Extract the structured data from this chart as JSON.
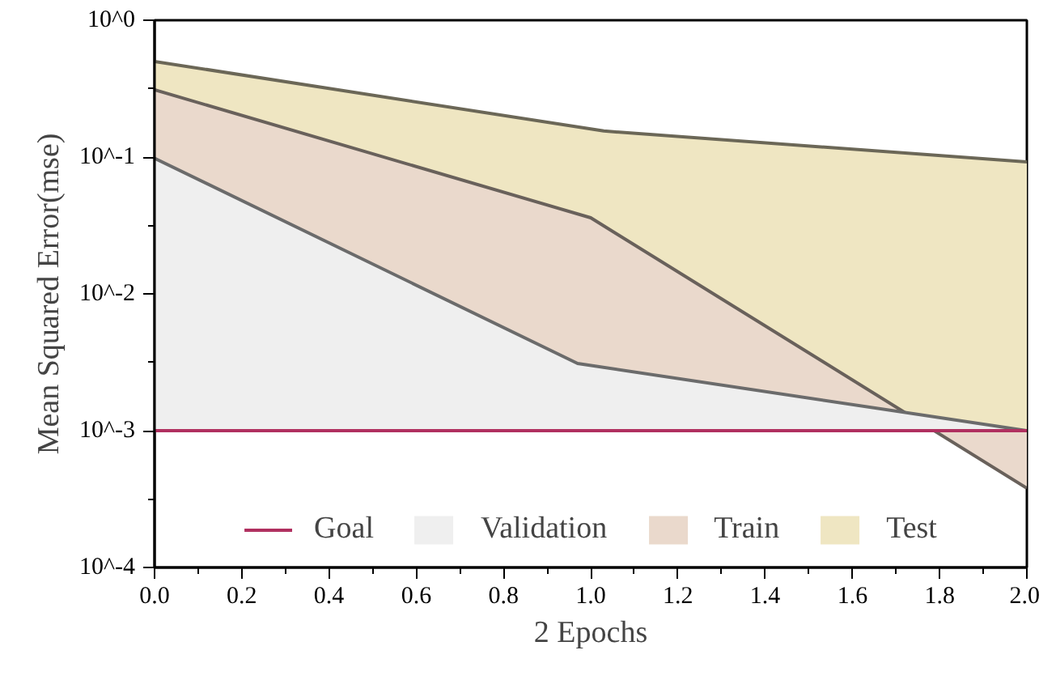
{
  "chart_data": {
    "type": "area",
    "xlabel": "2 Epochs",
    "ylabel": "Mean Squared Error(mse)",
    "log": "y",
    "xlim": [
      0,
      2
    ],
    "ylim": [
      0.0001,
      1
    ],
    "xticks": [
      {
        "value": 0,
        "label": "0.0"
      },
      {
        "value": 0.1,
        "label": null
      },
      {
        "value": 0.2,
        "label": "0.2"
      },
      {
        "value": 0.3,
        "label": null
      },
      {
        "value": 0.4,
        "label": "0.4"
      },
      {
        "value": 0.5,
        "label": null
      },
      {
        "value": 0.6,
        "label": "0.6"
      },
      {
        "value": 0.7,
        "label": null
      },
      {
        "value": 0.8,
        "label": "0.8"
      },
      {
        "value": 0.9,
        "label": null
      },
      {
        "value": 1.0,
        "label": "1.0"
      },
      {
        "value": 1.1,
        "label": null
      },
      {
        "value": 1.2,
        "label": "1.2"
      },
      {
        "value": 1.3,
        "label": null
      },
      {
        "value": 1.4,
        "label": "1.4"
      },
      {
        "value": 1.5,
        "label": null
      },
      {
        "value": 1.6,
        "label": "1.6"
      },
      {
        "value": 1.7,
        "label": null
      },
      {
        "value": 1.8,
        "label": "1.8"
      },
      {
        "value": 1.9,
        "label": null
      },
      {
        "value": 2.0,
        "label": "2.0"
      }
    ],
    "yticks": [
      {
        "value": 0.0001,
        "label": "10^-4"
      },
      {
        "value": 0.000316,
        "label": null
      },
      {
        "value": 0.001,
        "label": "10^-3"
      },
      {
        "value": 0.00316,
        "label": null
      },
      {
        "value": 0.01,
        "label": "10^-2"
      },
      {
        "value": 0.0316,
        "label": null
      },
      {
        "value": 0.1,
        "label": "10^-1"
      },
      {
        "value": 0.316,
        "label": null
      },
      {
        "value": 1,
        "label": "10^0"
      }
    ],
    "ref_lines": [
      {
        "axis": "y",
        "value": 0.001,
        "label": "Goal",
        "color": "#b03060"
      }
    ],
    "series": [
      {
        "name": "Validation",
        "color": "#efefef",
        "x": [
          0,
          0.97,
          2.0
        ],
        "values": [
          0.098,
          0.0031,
          0.001
        ]
      },
      {
        "name": "Train",
        "color": "#ead9cc",
        "x": [
          0,
          1.0,
          2.0
        ],
        "values": [
          0.31,
          0.036,
          0.00038
        ]
      },
      {
        "name": "Test",
        "color": "#efe6c2",
        "x": [
          0,
          1.03,
          2.0
        ],
        "values": [
          0.5,
          0.155,
          0.092
        ]
      }
    ],
    "legend": "bottom",
    "grid": false
  }
}
